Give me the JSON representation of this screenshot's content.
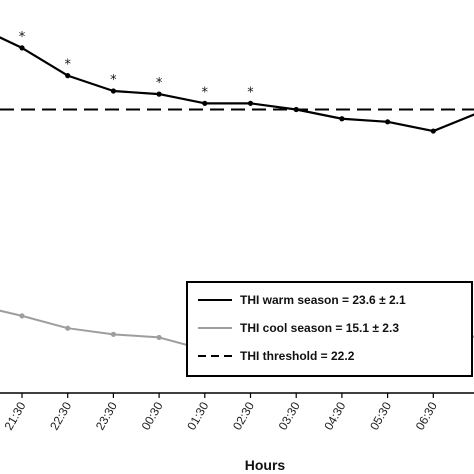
{
  "chart_data": {
    "type": "line",
    "x_label": "Hours",
    "x": [
      "21:30",
      "22:30",
      "23:30",
      "00:30",
      "01:30",
      "02:30",
      "03:30",
      "04:30",
      "05:30",
      "06:30"
    ],
    "series": [
      {
        "name": "THI warm season = 23.6 ± 2.1",
        "color": "#000000",
        "style": "solid",
        "values": [
          24.2,
          23.3,
          22.8,
          22.7,
          22.4,
          22.4,
          22.2,
          21.9,
          21.8,
          21.5
        ]
      },
      {
        "name": "THI cool season = 15.1 ± 2.3",
        "color": "#9e9e9e",
        "style": "solid",
        "values": [
          15.5,
          15.1,
          14.9,
          14.8,
          14.4,
          14.5,
          14.4,
          14.4,
          14.4,
          14.3
        ]
      },
      {
        "name": "THI threshold = 22.2",
        "color": "#000000",
        "style": "dashed",
        "values": [
          22.2,
          22.2,
          22.2,
          22.2,
          22.2,
          22.2,
          22.2,
          22.2,
          22.2,
          22.2
        ]
      }
    ],
    "significance": {
      "marker": "*",
      "categories": [
        "21:30",
        "22:30",
        "23:30",
        "00:30",
        "01:30",
        "02:30"
      ]
    },
    "legend_position": "bottom-right",
    "grid": false
  }
}
